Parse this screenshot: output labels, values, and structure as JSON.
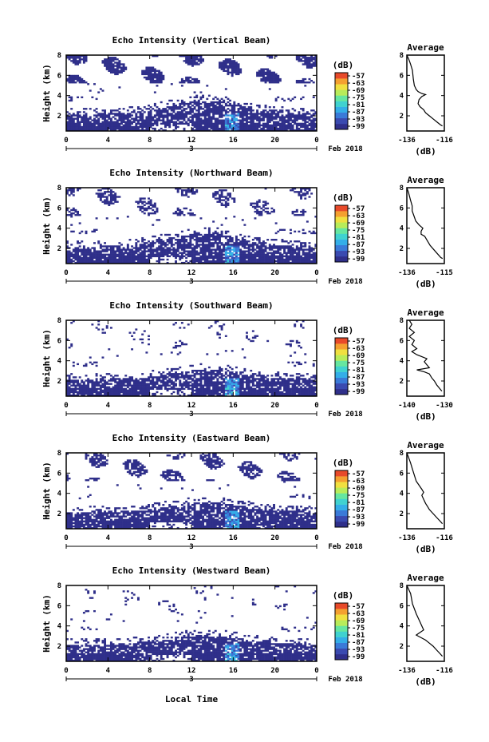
{
  "figure": {
    "xlabel_bottom": "Local Time",
    "cb_unit": "(dB)",
    "avg_title": "Average",
    "avg_unit": "(dB)",
    "date_label": "Feb 2018"
  },
  "palette": [
    "#2f2f8a",
    "#3a4ab0",
    "#3a7ad8",
    "#34aee8",
    "#40d2d0",
    "#66e6a0",
    "#b8ec5a",
    "#f0e040",
    "#f4a030",
    "#e84a2a"
  ],
  "chart_data": [
    {
      "type": "heatmap",
      "title": "Echo Intensity (Vertical Beam)",
      "ylabel": "Height (km)",
      "xticks": [
        "0",
        "4",
        "8",
        "12",
        "16",
        "20",
        "0"
      ],
      "day_label": "3",
      "yticks": [
        "8",
        "6",
        "4",
        "2"
      ],
      "xlim": [
        0,
        24
      ],
      "ylim": [
        0.5,
        8
      ],
      "cb_ticks": [
        "-57",
        "-63",
        "-69",
        "-75",
        "-81",
        "-87",
        "-93",
        "-99"
      ],
      "avg": {
        "xticks": [
          "-136",
          "-116"
        ],
        "xlim": [
          -136,
          -116
        ],
        "yticks": [
          "8",
          "6",
          "4",
          "2"
        ],
        "profile": [
          [
            -136,
            8
          ],
          [
            -135,
            7.6
          ],
          [
            -134,
            7.1
          ],
          [
            -133,
            6.5
          ],
          [
            -132.5,
            5.6
          ],
          [
            -132,
            5
          ],
          [
            -131,
            4.6
          ],
          [
            -130,
            4.4
          ],
          [
            -128,
            4.2
          ],
          [
            -126,
            4.1
          ],
          [
            -128,
            3.9
          ],
          [
            -129.5,
            3.6
          ],
          [
            -130,
            3.2
          ],
          [
            -129,
            2.9
          ],
          [
            -127,
            2.6
          ],
          [
            -126,
            2.3
          ],
          [
            -124,
            2
          ],
          [
            -122,
            1.7
          ],
          [
            -120,
            1.4
          ],
          [
            -118,
            1.1
          ],
          [
            -117,
            1
          ]
        ]
      }
    },
    {
      "type": "heatmap",
      "title": "Echo Intensity (Northward Beam)",
      "ylabel": "Height (km)",
      "xticks": [
        "0",
        "4",
        "8",
        "12",
        "16",
        "20",
        "0"
      ],
      "day_label": "3",
      "yticks": [
        "8",
        "6",
        "4",
        "2"
      ],
      "xlim": [
        0,
        24
      ],
      "ylim": [
        0.5,
        8
      ],
      "cb_ticks": [
        "-57",
        "-63",
        "-69",
        "-75",
        "-81",
        "-87",
        "-93",
        "-99"
      ],
      "avg": {
        "xticks": [
          "-136",
          "-115"
        ],
        "xlim": [
          -136,
          -115
        ],
        "yticks": [
          "8",
          "6",
          "4",
          "2"
        ],
        "profile": [
          [
            -136,
            8
          ],
          [
            -135,
            7.5
          ],
          [
            -134,
            6.8
          ],
          [
            -133,
            6.2
          ],
          [
            -133,
            5.7
          ],
          [
            -132,
            5.2
          ],
          [
            -131,
            4.7
          ],
          [
            -129,
            4.3
          ],
          [
            -127,
            4
          ],
          [
            -128,
            3.7
          ],
          [
            -128,
            3.4
          ],
          [
            -126,
            3.2
          ],
          [
            -125,
            2.9
          ],
          [
            -124,
            2.6
          ],
          [
            -123,
            2.3
          ],
          [
            -121,
            1.9
          ],
          [
            -119,
            1.5
          ],
          [
            -117,
            1.1
          ],
          [
            -116,
            1
          ]
        ]
      }
    },
    {
      "type": "heatmap",
      "title": "Echo Intensity (Southward Beam)",
      "ylabel": "Height (km)",
      "xticks": [
        "0",
        "4",
        "8",
        "12",
        "16",
        "20",
        "0"
      ],
      "day_label": "3",
      "yticks": [
        "8",
        "6",
        "4",
        "2"
      ],
      "xlim": [
        0,
        24
      ],
      "ylim": [
        0.5,
        8
      ],
      "cb_ticks": [
        "-57",
        "-63",
        "-69",
        "-75",
        "-81",
        "-87",
        "-93",
        "-99"
      ],
      "avg": {
        "xticks": [
          "-140",
          "-130"
        ],
        "xlim": [
          -140,
          -125
        ],
        "yticks": [
          "8",
          "6",
          "4",
          "2"
        ],
        "profile": [
          [
            -139,
            8
          ],
          [
            -138,
            7.6
          ],
          [
            -139,
            7.2
          ],
          [
            -137,
            6.8
          ],
          [
            -139,
            6.4
          ],
          [
            -137,
            6
          ],
          [
            -138,
            5.6
          ],
          [
            -136,
            5.2
          ],
          [
            -138,
            4.9
          ],
          [
            -136,
            4.6
          ],
          [
            -134,
            4.4
          ],
          [
            -132,
            4.2
          ],
          [
            -133,
            3.9
          ],
          [
            -132,
            3.6
          ],
          [
            -131,
            3.3
          ],
          [
            -136,
            3.1
          ],
          [
            -133,
            2.9
          ],
          [
            -131,
            2.7
          ],
          [
            -130,
            2.3
          ],
          [
            -129,
            2
          ],
          [
            -128,
            1.6
          ],
          [
            -127,
            1.3
          ],
          [
            -126,
            1
          ]
        ]
      }
    },
    {
      "type": "heatmap",
      "title": "Echo Intensity (Eastward Beam)",
      "ylabel": "Height (km)",
      "xticks": [
        "0",
        "4",
        "8",
        "12",
        "16",
        "20",
        "0"
      ],
      "day_label": "3",
      "yticks": [
        "8",
        "6",
        "4",
        "2"
      ],
      "xlim": [
        0,
        24
      ],
      "ylim": [
        0.5,
        8
      ],
      "cb_ticks": [
        "-57",
        "-63",
        "-69",
        "-75",
        "-81",
        "-87",
        "-93",
        "-99"
      ],
      "avg": {
        "xticks": [
          "-136",
          "-116"
        ],
        "xlim": [
          -136,
          -116
        ],
        "yticks": [
          "8",
          "6",
          "4",
          "2"
        ],
        "profile": [
          [
            -136,
            8
          ],
          [
            -135,
            7.5
          ],
          [
            -134,
            7
          ],
          [
            -133,
            6.4
          ],
          [
            -132,
            5.8
          ],
          [
            -131,
            5.2
          ],
          [
            -129.5,
            4.8
          ],
          [
            -128,
            4.4
          ],
          [
            -127,
            4.1
          ],
          [
            -128,
            3.8
          ],
          [
            -127,
            3.4
          ],
          [
            -126,
            3
          ],
          [
            -125,
            2.7
          ],
          [
            -124,
            2.4
          ],
          [
            -122,
            2
          ],
          [
            -120,
            1.6
          ],
          [
            -118,
            1.2
          ],
          [
            -117,
            1
          ]
        ]
      }
    },
    {
      "type": "heatmap",
      "title": "Echo Intensity (Westward Beam)",
      "ylabel": "Height (km)",
      "xticks": [
        "0",
        "4",
        "8",
        "12",
        "16",
        "20",
        "0"
      ],
      "day_label": "3",
      "yticks": [
        "8",
        "6",
        "4",
        "2"
      ],
      "xlim": [
        0,
        24
      ],
      "ylim": [
        0.5,
        8
      ],
      "cb_ticks": [
        "-57",
        "-63",
        "-69",
        "-75",
        "-81",
        "-87",
        "-93",
        "-99"
      ],
      "avg": {
        "xticks": [
          "-136",
          "-116"
        ],
        "xlim": [
          -136,
          -116
        ],
        "yticks": [
          "8",
          "6",
          "4",
          "2"
        ],
        "profile": [
          [
            -136,
            8
          ],
          [
            -135,
            7.6
          ],
          [
            -134,
            7.2
          ],
          [
            -133.5,
            6.7
          ],
          [
            -133,
            6.2
          ],
          [
            -132,
            5.7
          ],
          [
            -131,
            5.2
          ],
          [
            -130,
            4.8
          ],
          [
            -129,
            4.4
          ],
          [
            -128,
            4
          ],
          [
            -127,
            3.6
          ],
          [
            -131,
            3.1
          ],
          [
            -129,
            2.9
          ],
          [
            -126,
            2.6
          ],
          [
            -124,
            2.3
          ],
          [
            -122,
            2
          ],
          [
            -120,
            1.6
          ],
          [
            -118,
            1.2
          ],
          [
            -117,
            1
          ]
        ]
      }
    }
  ]
}
